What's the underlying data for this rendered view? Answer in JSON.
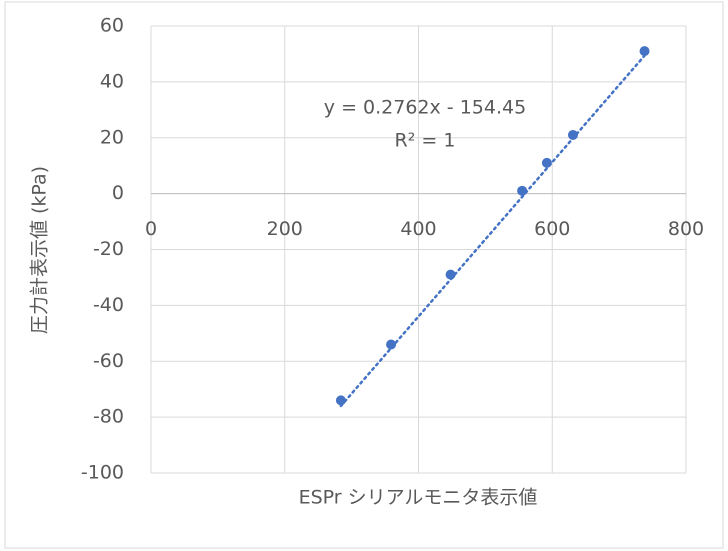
{
  "chart_data": {
    "type": "scatter",
    "x_label": "ESPr シリアルモニタ表示値",
    "y_label": "圧力計表示値 (kPa)",
    "series": [
      {
        "color": "#4472c4",
        "x": [
          284,
          359,
          448,
          555,
          592,
          631,
          738
        ],
        "values": [
          -74,
          -54,
          -29,
          1,
          11,
          21,
          51
        ]
      }
    ],
    "trendline": {
      "slope": 0.2762,
      "intercept": -154.45,
      "equation": "y = 0.2762x - 154.45",
      "r_squared": "R² = 1",
      "color": "#4472c4",
      "style": "dotted"
    },
    "xlim": [
      0,
      800
    ],
    "xticks": [
      0,
      200,
      400,
      600,
      800
    ],
    "ylim": [
      -100,
      60
    ],
    "yticks": [
      -100,
      -80,
      -60,
      -40,
      -20,
      0,
      20,
      40,
      60
    ],
    "grid": true
  }
}
